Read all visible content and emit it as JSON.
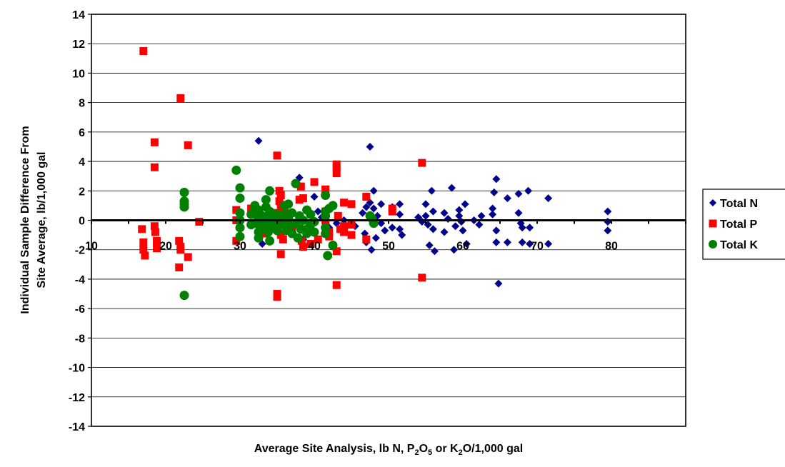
{
  "chart_data": {
    "type": "scatter",
    "title": "",
    "xlabel_parts": [
      "Average Site Analysis, lb N, P",
      "2",
      "O",
      "5",
      " or K",
      "2",
      "O/1,000 gal"
    ],
    "ylabel_lines": [
      "Individual Sample Difference From",
      "Site Average, lb/1,000 gal"
    ],
    "xlim": [
      10,
      90
    ],
    "ylim": [
      -14,
      14
    ],
    "x_ticks": [
      "10",
      "20",
      "30",
      "40",
      "50",
      "60",
      "70",
      "80"
    ],
    "x_tick_values": [
      10,
      20,
      30,
      40,
      50,
      60,
      70,
      80
    ],
    "y_ticks": [
      "14",
      "12",
      "10",
      "8",
      "6",
      "4",
      "2",
      "0",
      "-2",
      "-4",
      "-6",
      "-8",
      "-10",
      "-12",
      "-14"
    ],
    "y_tick_values": [
      14,
      12,
      10,
      8,
      6,
      4,
      2,
      0,
      -2,
      -4,
      -6,
      -8,
      -10,
      -12,
      -14
    ],
    "grid": true,
    "legend_position": "right",
    "series": [
      {
        "name": "Total N",
        "marker": "diamond",
        "color": "#00008B",
        "points": [
          [
            32.5,
            5.4
          ],
          [
            33,
            -1.6
          ],
          [
            33.5,
            -0.8
          ],
          [
            38,
            2.9
          ],
          [
            38.5,
            -1.3
          ],
          [
            40,
            1.6
          ],
          [
            40.5,
            0.6
          ],
          [
            41,
            0.2
          ],
          [
            42,
            -0.5
          ],
          [
            43,
            -0.2
          ],
          [
            44,
            0
          ],
          [
            45.5,
            -0.4
          ],
          [
            46.5,
            0.5
          ],
          [
            46.8,
            -0.9
          ],
          [
            47,
            0.9
          ],
          [
            47,
            -1.5
          ],
          [
            47.5,
            1.2
          ],
          [
            47.5,
            5
          ],
          [
            47.7,
            -2
          ],
          [
            48,
            2
          ],
          [
            48,
            0.8
          ],
          [
            48.3,
            -1.2
          ],
          [
            48.5,
            0.3
          ],
          [
            49,
            1.1
          ],
          [
            49,
            -0.2
          ],
          [
            49.5,
            -0.7
          ],
          [
            50.5,
            0.9
          ],
          [
            50.5,
            -0.5
          ],
          [
            51.5,
            1.1
          ],
          [
            51.5,
            0.4
          ],
          [
            51.5,
            -0.6
          ],
          [
            51.8,
            -1
          ],
          [
            54,
            0.2
          ],
          [
            54.5,
            -0.1
          ],
          [
            55,
            1.1
          ],
          [
            55,
            0.3
          ],
          [
            55.3,
            -0.3
          ],
          [
            55.5,
            -1.7
          ],
          [
            55.8,
            2
          ],
          [
            56,
            0.6
          ],
          [
            56,
            -0.6
          ],
          [
            56.2,
            -2.1
          ],
          [
            57.5,
            0.5
          ],
          [
            57.5,
            -0.8
          ],
          [
            58,
            0.1
          ],
          [
            58.5,
            2.2
          ],
          [
            58.8,
            -2
          ],
          [
            59,
            -0.4
          ],
          [
            59.5,
            0.7
          ],
          [
            59.5,
            0.3
          ],
          [
            59.8,
            -0.1
          ],
          [
            60,
            -0.7
          ],
          [
            60.3,
            1.1
          ],
          [
            60.5,
            -1.6
          ],
          [
            61.5,
            0
          ],
          [
            62.2,
            -0.3
          ],
          [
            62.5,
            0.3
          ],
          [
            64,
            0.8
          ],
          [
            64,
            0.4
          ],
          [
            64.2,
            1.9
          ],
          [
            64.5,
            2.8
          ],
          [
            64.5,
            -0.7
          ],
          [
            64.5,
            -1.5
          ],
          [
            64.8,
            -4.3
          ],
          [
            66,
            1.5
          ],
          [
            66,
            -1.5
          ],
          [
            67.5,
            1.8
          ],
          [
            67.5,
            0.5
          ],
          [
            67.8,
            -0.2
          ],
          [
            68,
            -0.5
          ],
          [
            68,
            -1.5
          ],
          [
            68.8,
            2
          ],
          [
            69,
            -0.5
          ],
          [
            69,
            -1.6
          ],
          [
            71.5,
            1.5
          ],
          [
            71.5,
            -1.6
          ],
          [
            79.5,
            0.6
          ],
          [
            79.5,
            -0.1
          ],
          [
            79.5,
            -0.7
          ]
        ]
      },
      {
        "name": "Total P",
        "marker": "square",
        "color": "#FF0000",
        "points": [
          [
            17,
            11.5
          ],
          [
            16.8,
            -0.6
          ],
          [
            17,
            -1.5
          ],
          [
            17,
            -2
          ],
          [
            17.2,
            -2.4
          ],
          [
            18.5,
            5.3
          ],
          [
            18.5,
            3.6
          ],
          [
            18.5,
            -0.4
          ],
          [
            18.6,
            -0.8
          ],
          [
            18.8,
            -1.4
          ],
          [
            18.8,
            -1.9
          ],
          [
            22,
            8.3
          ],
          [
            21.8,
            -1.4
          ],
          [
            22,
            -1.8
          ],
          [
            22,
            -2
          ],
          [
            21.8,
            -3.2
          ],
          [
            23,
            5.1
          ],
          [
            23,
            -2.5
          ],
          [
            24.5,
            -0.1
          ],
          [
            29.5,
            0.7
          ],
          [
            29.5,
            0
          ],
          [
            29.5,
            -1.4
          ],
          [
            31.5,
            0.8
          ],
          [
            32.5,
            0.3
          ],
          [
            33,
            -0.6
          ],
          [
            33.5,
            -0.9
          ],
          [
            34.5,
            0.5
          ],
          [
            34.5,
            -0.2
          ],
          [
            35,
            4.4
          ],
          [
            35,
            -5
          ],
          [
            35,
            -5.2
          ],
          [
            35.3,
            2
          ],
          [
            35.3,
            1.3
          ],
          [
            35.5,
            1.7
          ],
          [
            35.5,
            0.9
          ],
          [
            35.5,
            0.4
          ],
          [
            35.5,
            -0.3
          ],
          [
            35.5,
            -1
          ],
          [
            35.5,
            -2.3
          ],
          [
            35.8,
            -1.3
          ],
          [
            36,
            0.9
          ],
          [
            36.5,
            0.2
          ],
          [
            37,
            -0.5
          ],
          [
            37.5,
            -0.3
          ],
          [
            38,
            1.4
          ],
          [
            38.2,
            2.3
          ],
          [
            38.3,
            -1.4
          ],
          [
            38.5,
            -1.8
          ],
          [
            38.5,
            1.5
          ],
          [
            39,
            -0.7
          ],
          [
            39.5,
            -1.6
          ],
          [
            40,
            2.6
          ],
          [
            40.5,
            -1.3
          ],
          [
            41.5,
            2.1
          ],
          [
            41.5,
            0.6
          ],
          [
            41.5,
            0
          ],
          [
            42,
            -0.8
          ],
          [
            42,
            -1.1
          ],
          [
            43,
            3.8
          ],
          [
            43,
            3.5
          ],
          [
            43,
            3.2
          ],
          [
            43,
            -2.1
          ],
          [
            43,
            -4.4
          ],
          [
            43.2,
            0.3
          ],
          [
            43.5,
            -0.6
          ],
          [
            44,
            1.2
          ],
          [
            44,
            -0.4
          ],
          [
            44,
            -0.8
          ],
          [
            45,
            1.1
          ],
          [
            45,
            -0.3
          ],
          [
            45,
            -1
          ],
          [
            47,
            1.6
          ],
          [
            47,
            -1.3
          ],
          [
            50.5,
            0.8
          ],
          [
            50.5,
            0.6
          ],
          [
            54.5,
            3.9
          ],
          [
            54.5,
            -3.9
          ]
        ]
      },
      {
        "name": "Total K",
        "marker": "circle",
        "color": "#008000",
        "points": [
          [
            22.5,
            1.9
          ],
          [
            22.5,
            1.3
          ],
          [
            22.5,
            1.1
          ],
          [
            22.5,
            0.9
          ],
          [
            22.5,
            -5.1
          ],
          [
            29.5,
            3.4
          ],
          [
            30,
            2.2
          ],
          [
            30,
            1.5
          ],
          [
            30,
            0.5
          ],
          [
            30,
            0
          ],
          [
            30,
            -0.5
          ],
          [
            30,
            -1.1
          ],
          [
            31.5,
            0.4
          ],
          [
            31.5,
            -0.3
          ],
          [
            32,
            -0.2
          ],
          [
            32,
            0.9
          ],
          [
            32,
            1
          ],
          [
            32.5,
            0.7
          ],
          [
            32.5,
            0.4
          ],
          [
            32.5,
            0.1
          ],
          [
            32.5,
            -0.3
          ],
          [
            32.5,
            -0.8
          ],
          [
            32.5,
            -1.2
          ],
          [
            33,
            0.3
          ],
          [
            33,
            -0.1
          ],
          [
            33,
            -0.5
          ],
          [
            33.5,
            1.4
          ],
          [
            33.5,
            0.9
          ],
          [
            33.5,
            0.2
          ],
          [
            33.5,
            -0.3
          ],
          [
            33.8,
            -0.8
          ],
          [
            34,
            2
          ],
          [
            34,
            0.6
          ],
          [
            34,
            -0.1
          ],
          [
            34,
            -0.6
          ],
          [
            34,
            -1.4
          ],
          [
            34.5,
            -0.3
          ],
          [
            34.5,
            0.2
          ],
          [
            35,
            0.4
          ],
          [
            35,
            -0.2
          ],
          [
            35,
            -0.7
          ],
          [
            35.5,
            -0.1
          ],
          [
            35.5,
            0.3
          ],
          [
            36,
            1
          ],
          [
            36,
            0.4
          ],
          [
            36,
            -0.3
          ],
          [
            36.2,
            -0.7
          ],
          [
            36.5,
            1.1
          ],
          [
            36.5,
            0.2
          ],
          [
            36.5,
            -0.5
          ],
          [
            37,
            0.5
          ],
          [
            37,
            -0.2
          ],
          [
            37,
            -0.9
          ],
          [
            37.5,
            2.5
          ],
          [
            37.5,
            -0.2
          ],
          [
            37.8,
            -1.2
          ],
          [
            38,
            0.3
          ],
          [
            38.2,
            -0.6
          ],
          [
            38.5,
            0
          ],
          [
            39,
            0.7
          ],
          [
            39,
            -0.6
          ],
          [
            39,
            -0.9
          ],
          [
            39.5,
            0.4
          ],
          [
            39.5,
            -0.3
          ],
          [
            40,
            -0.1
          ],
          [
            40,
            -0.8
          ],
          [
            41.5,
            1.7
          ],
          [
            41.5,
            0.6
          ],
          [
            41.5,
            0.3
          ],
          [
            41.5,
            -0.5
          ],
          [
            41.5,
            -0.9
          ],
          [
            41.8,
            -2.4
          ],
          [
            42,
            0.8
          ],
          [
            42.5,
            1
          ],
          [
            42.5,
            -1.7
          ],
          [
            47.5,
            0.3
          ],
          [
            47.8,
            0.1
          ],
          [
            48,
            -0.2
          ]
        ]
      }
    ]
  }
}
